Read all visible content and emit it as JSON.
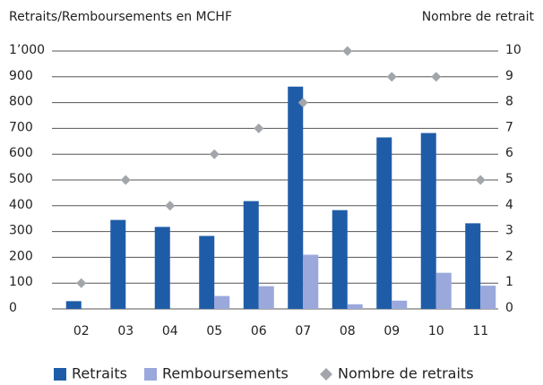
{
  "chart_data": {
    "type": "bar",
    "title": "Retraits/Remboursements en MCHF",
    "y2_label": "Nombre de retrait",
    "categories": [
      "02",
      "03",
      "04",
      "05",
      "06",
      "07",
      "08",
      "09",
      "10",
      "11"
    ],
    "series": [
      {
        "name": "Retraits",
        "color": "#1f5ca8",
        "values": [
          30,
          345,
          318,
          283,
          418,
          862,
          383,
          665,
          682,
          332
        ]
      },
      {
        "name": "Remboursements",
        "color": "#9ba8dc",
        "values": [
          0,
          0,
          0,
          50,
          88,
          210,
          18,
          32,
          140,
          90
        ]
      },
      {
        "name": "Nombre de retraits",
        "color": "#a2a6aa",
        "axis": "y2",
        "marker": "diamond",
        "values": [
          1,
          5,
          4,
          6,
          7,
          8,
          10,
          9,
          9,
          5
        ]
      }
    ],
    "ylim": [
      0,
      1000
    ],
    "yticks": [
      0,
      100,
      200,
      300,
      400,
      500,
      600,
      700,
      800,
      900,
      {
        "value": 1000,
        "label": "1’000"
      }
    ],
    "y2lim": [
      0,
      10
    ],
    "y2ticks": [
      0,
      1,
      2,
      3,
      4,
      5,
      6,
      7,
      8,
      9,
      10
    ],
    "grid": true,
    "legend": "bottom"
  }
}
